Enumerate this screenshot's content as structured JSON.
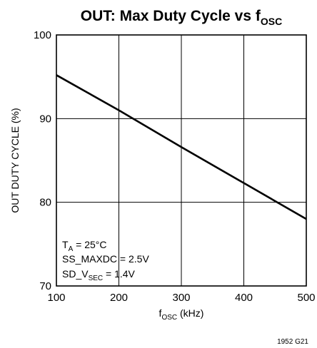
{
  "chart_data": {
    "type": "line",
    "title": {
      "main": "OUT: Max Duty Cycle vs f",
      "sub": "OSC"
    },
    "xlabel": {
      "main": "f",
      "sub": "OSC",
      "rest": " (kHz)"
    },
    "ylabel": "OUT DUTY CYCLE (%)",
    "xlim": [
      100,
      500
    ],
    "ylim": [
      70,
      100
    ],
    "x_ticks": [
      100,
      200,
      300,
      400,
      500
    ],
    "y_ticks": [
      70,
      80,
      90,
      100
    ],
    "grid": true,
    "series": [
      {
        "x": [
          100,
          200,
          300,
          400,
          500
        ],
        "values": [
          95.2,
          91.0,
          86.6,
          82.3,
          78.0
        ]
      }
    ],
    "annotations": [
      {
        "main": "T",
        "sub": "A",
        "rest": " = 25°C"
      },
      {
        "main": "SS_MAXDC = 2.5V",
        "sub": "",
        "rest": ""
      },
      {
        "main": "SD_V",
        "sub": "SEC",
        "rest": " = 1.4V"
      }
    ],
    "figure_id": "1952 G21",
    "line_color": "#000000"
  }
}
